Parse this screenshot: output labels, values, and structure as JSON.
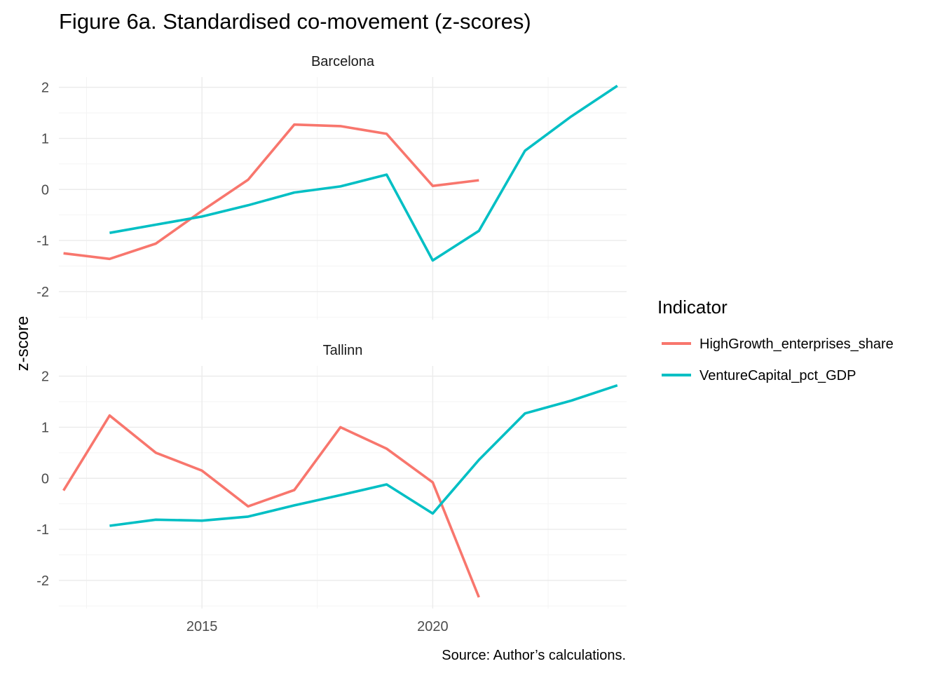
{
  "title": "Figure 6a. Standardised co-movement (z-scores)",
  "ylabel": "z-score",
  "caption": "Source: Author’s calculations.",
  "legend": {
    "title": "Indicator",
    "items": [
      {
        "label": "HighGrowth_enterprises_share",
        "color": "#F8766D"
      },
      {
        "label": "VentureCapital_pct_GDP",
        "color": "#00BFC4"
      }
    ]
  },
  "chart_data": {
    "type": "line",
    "facets": [
      "Barcelona",
      "Tallinn"
    ],
    "x_ticks": [
      2015,
      2020
    ],
    "y_ticks": [
      -2,
      -1,
      0,
      1,
      2
    ],
    "xlim": [
      2011.9,
      2024.2
    ],
    "panels": [
      {
        "facet": "Barcelona",
        "ylim": [
          -2.55,
          2.2
        ],
        "series": [
          {
            "name": "HighGrowth_enterprises_share",
            "color": "#F8766D",
            "x": [
              2012,
              2013,
              2014,
              2015,
              2016,
              2017,
              2018,
              2019,
              2020,
              2021
            ],
            "y": [
              -1.25,
              -1.36,
              -1.06,
              -0.42,
              0.19,
              1.27,
              1.24,
              1.09,
              0.07,
              0.18
            ]
          },
          {
            "name": "VentureCapital_pct_GDP",
            "color": "#00BFC4",
            "x": [
              2013,
              2014,
              2015,
              2016,
              2017,
              2018,
              2019,
              2020,
              2021,
              2022,
              2023,
              2024
            ],
            "y": [
              -0.85,
              -0.69,
              -0.53,
              -0.31,
              -0.06,
              0.06,
              0.29,
              -1.39,
              -0.81,
              0.76,
              1.43,
              2.03
            ]
          }
        ]
      },
      {
        "facet": "Tallinn",
        "ylim": [
          -2.55,
          2.2
        ],
        "series": [
          {
            "name": "HighGrowth_enterprises_share",
            "color": "#F8766D",
            "x": [
              2012,
              2013,
              2014,
              2015,
              2016,
              2017,
              2018,
              2019,
              2020,
              2021
            ],
            "y": [
              -0.24,
              1.23,
              0.5,
              0.15,
              -0.55,
              -0.23,
              1.0,
              0.58,
              -0.08,
              -2.33
            ]
          },
          {
            "name": "VentureCapital_pct_GDP",
            "color": "#00BFC4",
            "x": [
              2013,
              2014,
              2015,
              2016,
              2017,
              2018,
              2019,
              2020,
              2021,
              2022,
              2023,
              2024
            ],
            "y": [
              -0.93,
              -0.81,
              -0.83,
              -0.75,
              -0.53,
              -0.33,
              -0.12,
              -0.69,
              0.36,
              1.27,
              1.52,
              1.82
            ]
          }
        ]
      }
    ],
    "grid": true,
    "legend_position": "right"
  }
}
